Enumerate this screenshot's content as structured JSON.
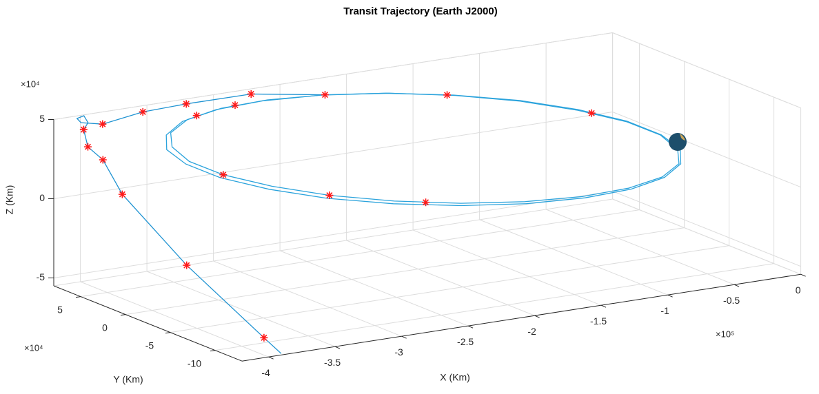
{
  "chart_data": {
    "type": "line3d",
    "title": "Transit Trajectory (Earth J2000)",
    "xlabel": "X (Km)",
    "ylabel": "Y (Km)",
    "zlabel": "Z (Km)",
    "x_exponent_label": "×10⁵",
    "y_exponent_label": "×10⁴",
    "z_exponent_label": "×10⁴",
    "xlim": [
      -4.2,
      0
    ],
    "ylim": [
      -13,
      8
    ],
    "zlim": [
      -5.5,
      5
    ],
    "xticks": [
      -4,
      -3.5,
      -3,
      -2.5,
      -2,
      -1.5,
      -1,
      -0.5,
      0
    ],
    "yticks": [
      -10,
      -5,
      0,
      5
    ],
    "zticks": [
      -5,
      0,
      5
    ],
    "grid": true,
    "series": [
      {
        "color": "#2ba3dc",
        "x": [
          -0.05,
          -0.11,
          -0.3,
          -0.61,
          -1.0,
          -1.46,
          -1.95,
          -2.44,
          -2.9,
          -3.29,
          -3.6,
          -3.79,
          -3.85,
          -3.79,
          -3.6,
          -3.29,
          -2.9,
          -2.44,
          -1.95,
          -1.46,
          -1.0,
          -0.61,
          -0.3,
          -0.11,
          -0.05
        ],
        "y": [
          0,
          1.04,
          2.0,
          2.83,
          3.46,
          3.86,
          4,
          3.86,
          3.46,
          2.83,
          2.0,
          1.04,
          0,
          -1.04,
          -2,
          -2.83,
          -3.46,
          -3.86,
          -4,
          -3.86,
          -3.46,
          -2.83,
          -2.0,
          -1.04,
          0
        ],
        "z": [
          -0.5,
          0.26,
          1.13,
          2.07,
          3.01,
          3.88,
          4.63,
          5.2,
          5.57,
          5.69,
          5.57,
          5.2,
          4.62,
          3.86,
          2.99,
          2.05,
          1.11,
          0.24,
          -0.51,
          -1.08,
          -1.45,
          -1.57,
          -1.45,
          -1.08,
          -0.5
        ]
      },
      {
        "color": "#2ba3dc",
        "x": [
          -0.03,
          -0.1,
          -0.29,
          -0.6,
          -0.99,
          -1.46,
          -1.96,
          -2.46,
          -2.93,
          -3.32,
          -3.63,
          -3.82,
          -3.89,
          -3.82,
          -3.63,
          -3.32,
          -2.93,
          -2.46,
          -1.96,
          -1.46,
          -0.99,
          -0.6,
          -0.29,
          -0.1,
          -0.03
        ],
        "y": [
          0,
          1.09,
          2.1,
          2.97,
          3.64,
          4.06,
          4.2,
          4.06,
          3.64,
          2.97,
          2.1,
          1.09,
          0,
          -1.09,
          -2.1,
          -2.97,
          -3.64,
          -4.06,
          -4.2,
          -4.06,
          -3.64,
          -2.97,
          -2.1,
          -1.09,
          0
        ],
        "z": [
          -0.5,
          0.25,
          1.13,
          2.07,
          3.0,
          3.86,
          4.6,
          5.16,
          5.5,
          5.61,
          5.47,
          5.09,
          4.5,
          3.75,
          2.87,
          1.93,
          1.0,
          0.14,
          -0.6,
          -1.16,
          -1.5,
          -1.61,
          -1.47,
          -1.09,
          -0.5
        ]
      },
      {
        "color": "#1f93d2",
        "x": [
          -2.44,
          -2.9,
          -3.4,
          -3.75,
          -4.0,
          -4.1,
          -4.15,
          -4.15,
          -4.15,
          -4.1,
          -4.1,
          -4.1,
          -4.1,
          -4.0,
          -3.9,
          -3.85
        ],
        "y": [
          3.86,
          5.28,
          5.09,
          4.74,
          5.52,
          6.45,
          6.15,
          5.38,
          4.92,
          6.15,
          5.68,
          4.0,
          1.84,
          -3.86,
          -11.0,
          -12.18
        ],
        "z": [
          5.2,
          5.53,
          5.6,
          5.63,
          5.01,
          5.02,
          5.42,
          5.76,
          5.43,
          4.65,
          3.67,
          3.23,
          1.54,
          -1.78,
          -4.87,
          -5.67
        ]
      }
    ],
    "markers": {
      "color": "#ff1a1a",
      "x": [
        -2.9,
        -2.44,
        -1.52,
        -0.52,
        -3.4,
        -3.75,
        -4.0,
        -4.1,
        -4.1,
        -4.1,
        -4.1,
        -4.0,
        -3.9,
        -3.17,
        -3.51,
        -3.6,
        -2.9,
        -2.21
      ],
      "y": [
        5.28,
        3.86,
        3.9,
        2.62,
        5.09,
        4.74,
        5.52,
        6.15,
        5.68,
        4.0,
        1.84,
        -3.86,
        -11.0,
        3.06,
        2.3,
        -2,
        -3.46,
        -3.96
      ],
      "z": [
        5.53,
        5.2,
        3.98,
        1.82,
        5.6,
        5.63,
        5.01,
        4.65,
        3.67,
        3.23,
        1.54,
        -1.78,
        -4.87,
        5.68,
        5.64,
        2.99,
        1.11,
        -0.12
      ]
    }
  }
}
